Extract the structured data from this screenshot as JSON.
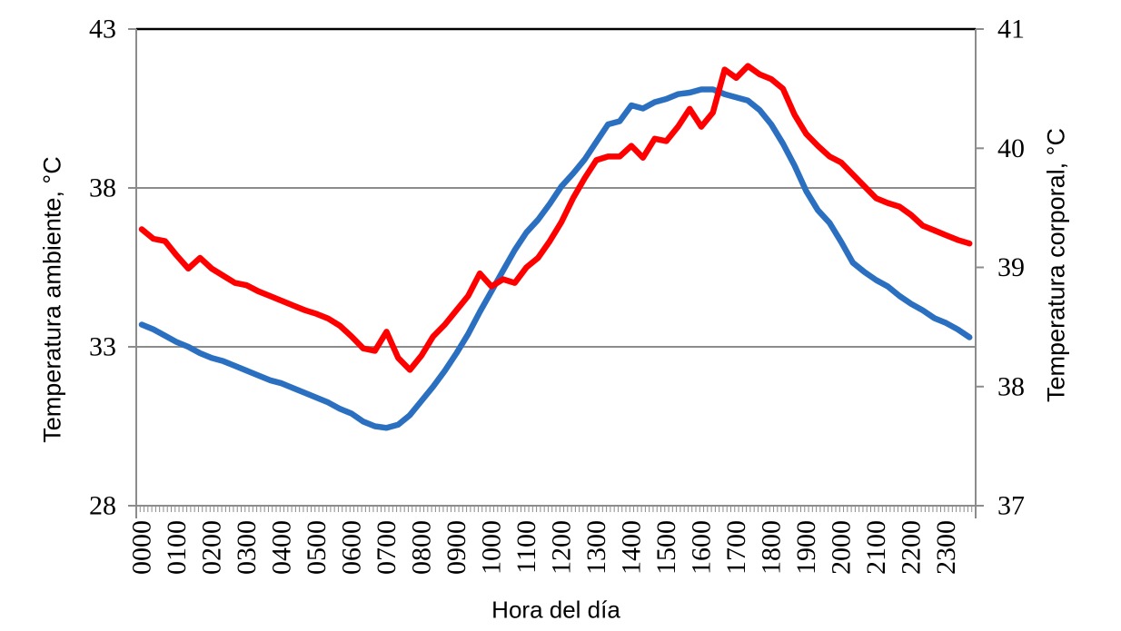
{
  "chart_data": {
    "type": "line",
    "title": "",
    "xlabel": "Hora del día",
    "x_axis": {
      "tick_labels": [
        "0000",
        "0100",
        "0200",
        "0300",
        "0400",
        "0500",
        "0600",
        "0700",
        "0800",
        "0900",
        "1000",
        "1100",
        "1200",
        "1300",
        "1400",
        "1500",
        "1600",
        "1700",
        "1800",
        "1900",
        "2000",
        "2100",
        "2200",
        "2300"
      ],
      "sample_interval_minutes": 20,
      "first_sample": "0000",
      "last_sample": "2340",
      "minor_ticks_per_axis": 216
    },
    "y_left": {
      "label": "Temperatura ambiente, °C",
      "min": 28,
      "max": 43,
      "ticks": [
        43,
        38,
        33,
        28
      ],
      "gridline_values": [
        38,
        33
      ]
    },
    "y_right": {
      "label": "Temperatura corporal, °C",
      "min": 37,
      "max": 41,
      "ticks": [
        41,
        40,
        39,
        38,
        37
      ]
    },
    "series": [
      {
        "name": "Temperatura ambiente",
        "axis": "left",
        "color": "#2B70C0",
        "values": [
          33.7,
          33.55,
          33.35,
          33.15,
          33.0,
          32.8,
          32.65,
          32.55,
          32.4,
          32.25,
          32.1,
          31.95,
          31.85,
          31.7,
          31.55,
          31.4,
          31.25,
          31.05,
          30.9,
          30.65,
          30.5,
          30.45,
          30.55,
          30.85,
          31.3,
          31.75,
          32.25,
          32.8,
          33.4,
          34.1,
          34.75,
          35.4,
          36.05,
          36.6,
          37.0,
          37.5,
          38.05,
          38.45,
          38.9,
          39.45,
          40.0,
          40.1,
          40.6,
          40.5,
          40.7,
          40.8,
          40.95,
          41.0,
          41.1,
          41.1,
          40.95,
          40.85,
          40.75,
          40.45,
          40.0,
          39.4,
          38.7,
          37.9,
          37.3,
          36.9,
          36.3,
          35.65,
          35.35,
          35.1,
          34.9,
          34.6,
          34.35,
          34.15,
          33.9,
          33.75,
          33.55,
          33.3
        ]
      },
      {
        "name": "Temperatura corporal",
        "axis": "right",
        "color": "#FE0000",
        "values": [
          39.32,
          39.24,
          39.22,
          39.1,
          38.99,
          39.08,
          38.99,
          38.93,
          38.87,
          38.85,
          38.8,
          38.76,
          38.72,
          38.68,
          38.64,
          38.61,
          38.57,
          38.51,
          38.42,
          38.32,
          38.3,
          38.46,
          38.24,
          38.14,
          38.26,
          38.42,
          38.52,
          38.64,
          38.76,
          38.95,
          38.84,
          38.9,
          38.87,
          39.0,
          39.08,
          39.22,
          39.38,
          39.58,
          39.75,
          39.9,
          39.93,
          39.93,
          40.02,
          39.92,
          40.08,
          40.06,
          40.18,
          40.33,
          40.18,
          40.3,
          40.66,
          40.59,
          40.69,
          40.62,
          40.58,
          40.5,
          40.28,
          40.12,
          40.02,
          39.93,
          39.88,
          39.78,
          39.68,
          39.58,
          39.54,
          39.51,
          39.44,
          39.35,
          39.31,
          39.27,
          39.23,
          39.2
        ]
      }
    ],
    "colors": {
      "grid": "#8C8C8C",
      "axis": "#8C8C8C",
      "top_border": "#000000",
      "text": "#000000",
      "background": "#FFFFFF"
    },
    "legend": "none",
    "grid": "horizontal-only"
  }
}
